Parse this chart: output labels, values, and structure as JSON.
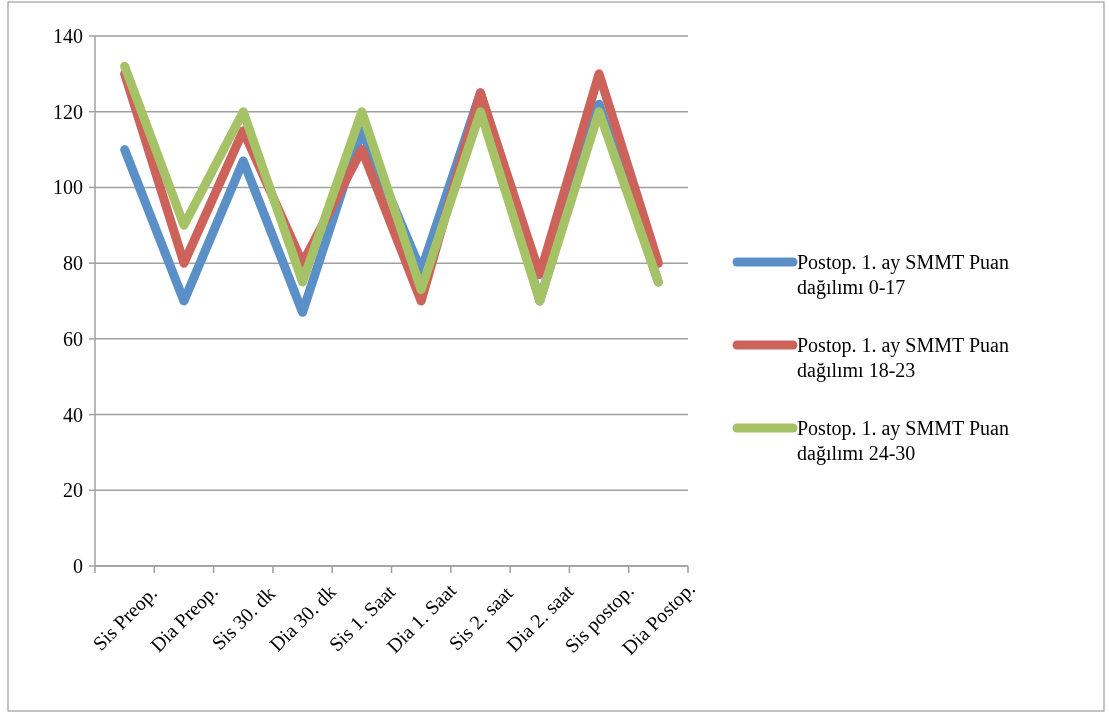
{
  "chart_data": {
    "type": "line",
    "categories": [
      "Sis Preop.",
      "Dia Preop.",
      "Sis 30. dk",
      "Dia 30. dk",
      "Sis 1. Saat",
      "Dia 1. Saat",
      "Sis 2. saat",
      "Dia 2. saat",
      "Sis postop.",
      "Dia Postop."
    ],
    "series": [
      {
        "name": "Postop. 1. ay SMMT Puan dağılımı 0-17",
        "color": "#5b8fc8",
        "values": [
          110,
          70,
          107,
          67,
          115,
          78,
          125,
          70,
          122,
          75
        ]
      },
      {
        "name": "Postop. 1. ay SMMT Puan dağılımı 18-23",
        "color": "#cd625a",
        "values": [
          130,
          80,
          115,
          80,
          110,
          70,
          125,
          77,
          130,
          80
        ]
      },
      {
        "name": "Postop. 1. ay SMMT Puan dağılımı 24-30",
        "color": "#a5c366",
        "values": [
          132,
          90,
          120,
          75,
          120,
          73,
          120,
          70,
          120,
          75
        ]
      }
    ],
    "ylim": [
      0,
      140
    ],
    "yticks": [
      0,
      20,
      40,
      60,
      80,
      100,
      120,
      140
    ],
    "grid": "y",
    "legend": "right",
    "marker": "none",
    "line_style": "solid"
  }
}
